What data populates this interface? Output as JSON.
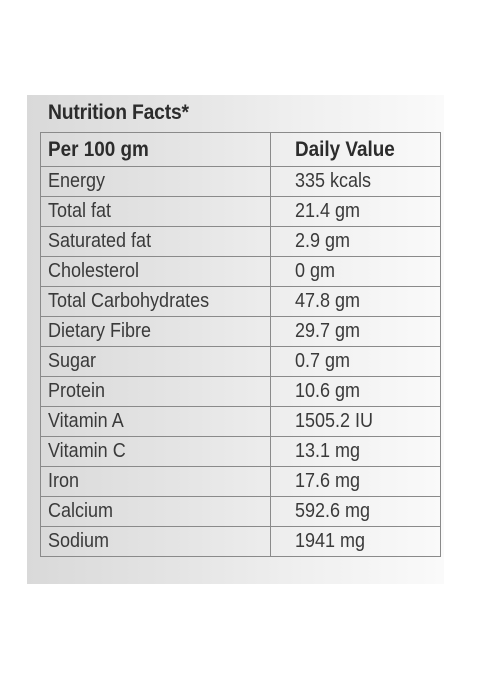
{
  "title": "Nutrition Facts*",
  "header": {
    "col1": "Per 100 gm",
    "col2": "Daily Value"
  },
  "rows": [
    {
      "nutrient": "Energy",
      "value": "335 kcals"
    },
    {
      "nutrient": "Total fat",
      "value": "21.4 gm"
    },
    {
      "nutrient": "Saturated fat",
      "value": "2.9 gm"
    },
    {
      "nutrient": "Cholesterol",
      "value": "0 gm"
    },
    {
      "nutrient": "Total Carbohydrates",
      "value": "47.8 gm"
    },
    {
      "nutrient": "Dietary Fibre",
      "value": "29.7 gm"
    },
    {
      "nutrient": "Sugar",
      "value": "0.7 gm"
    },
    {
      "nutrient": "Protein",
      "value": "10.6 gm"
    },
    {
      "nutrient": "Vitamin A",
      "value": "1505.2 IU"
    },
    {
      "nutrient": "Vitamin C",
      "value": "13.1 mg"
    },
    {
      "nutrient": "Iron",
      "value": "17.6 mg"
    },
    {
      "nutrient": "Calcium",
      "value": "592.6 mg"
    },
    {
      "nutrient": "Sodium",
      "value": "1941 mg"
    }
  ]
}
